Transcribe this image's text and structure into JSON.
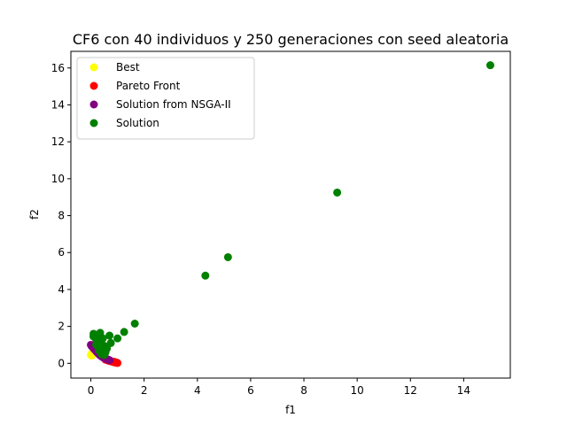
{
  "chart_data": {
    "type": "scatter",
    "title": "CF6 con 40 individuos y 250 generaciones con seed aleatoria",
    "xlabel": "f1",
    "ylabel": "f2",
    "xlim": [
      -0.75,
      15.75
    ],
    "ylim": [
      -0.8,
      16.9
    ],
    "xticks": [
      0,
      2,
      4,
      6,
      8,
      10,
      12,
      14
    ],
    "yticks": [
      0,
      2,
      4,
      6,
      8,
      10,
      12,
      14,
      16
    ],
    "grid": false,
    "legend_position": "top-left",
    "series": [
      {
        "name": "Best",
        "color": "#ffff00",
        "x": [
          0.0,
          0.02,
          0.04,
          0.06
        ],
        "y": [
          0.45,
          0.5,
          0.42,
          0.55
        ]
      },
      {
        "name": "Pareto Front",
        "color": "#ff0000",
        "x": [
          0.55,
          0.6,
          0.65,
          0.7,
          0.75,
          0.8,
          0.85,
          0.9,
          0.95,
          0.98,
          1.0,
          0.92,
          0.88
        ],
        "y": [
          0.2,
          0.18,
          0.15,
          0.13,
          0.11,
          0.09,
          0.07,
          0.05,
          0.04,
          0.03,
          0.02,
          0.06,
          0.08
        ]
      },
      {
        "name": "Solution from NSGA-II",
        "color": "#800080",
        "x": [
          0.0,
          0.02,
          0.05,
          0.08,
          0.1,
          0.12,
          0.15,
          0.18,
          0.2,
          0.22,
          0.25,
          0.28,
          0.3,
          0.33,
          0.36,
          0.4,
          0.43,
          0.46,
          0.5,
          0.53,
          0.56,
          0.6,
          0.63,
          0.66,
          0.7
        ],
        "y": [
          1.0,
          0.95,
          0.9,
          0.86,
          0.82,
          0.78,
          0.74,
          0.7,
          0.66,
          0.62,
          0.58,
          0.54,
          0.5,
          0.46,
          0.42,
          0.38,
          0.35,
          0.32,
          0.29,
          0.27,
          0.25,
          0.23,
          0.21,
          0.19,
          0.17
        ]
      },
      {
        "name": "Solution",
        "color": "#008000",
        "x": [
          0.1,
          0.15,
          0.2,
          0.25,
          0.3,
          0.35,
          0.4,
          0.45,
          0.5,
          0.55,
          0.6,
          0.7,
          0.75,
          0.2,
          0.3,
          0.4,
          0.5,
          0.6,
          0.35,
          0.45,
          1.0,
          1.25,
          1.65,
          4.3,
          5.15,
          9.25,
          15.0,
          0.1,
          0.25,
          0.5
        ],
        "y": [
          1.6,
          1.5,
          1.3,
          1.2,
          1.1,
          1.0,
          0.9,
          0.8,
          0.7,
          0.6,
          0.8,
          1.5,
          1.1,
          1.0,
          0.7,
          0.5,
          0.45,
          0.9,
          1.65,
          1.35,
          1.35,
          1.7,
          2.15,
          4.75,
          5.75,
          9.25,
          16.15,
          1.45,
          1.25,
          0.95
        ]
      }
    ]
  }
}
